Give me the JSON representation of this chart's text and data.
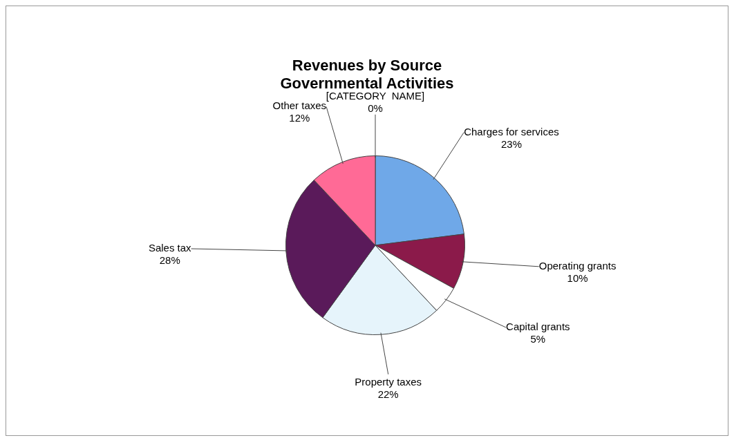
{
  "chart_data": {
    "type": "pie",
    "title": "Revenues by Source",
    "subtitle": "Governmental Activities",
    "categories": [
      "Charges for services",
      "Operating grants",
      "Capital grants",
      "Property taxes",
      "Sales tax",
      "Other taxes",
      "[CATEGORY  NAME]"
    ],
    "values": [
      23,
      10,
      5,
      22,
      28,
      12,
      0
    ],
    "colors": [
      "#6fa8e8",
      "#8b1a4a",
      "#ffffff",
      "#e6f4fb",
      "#5a1a5a",
      "#ff6a96",
      "#4f81bd"
    ],
    "value_labels": [
      "23%",
      "10%",
      "5%",
      "22%",
      "28%",
      "12%",
      "0%"
    ],
    "legend": false
  }
}
